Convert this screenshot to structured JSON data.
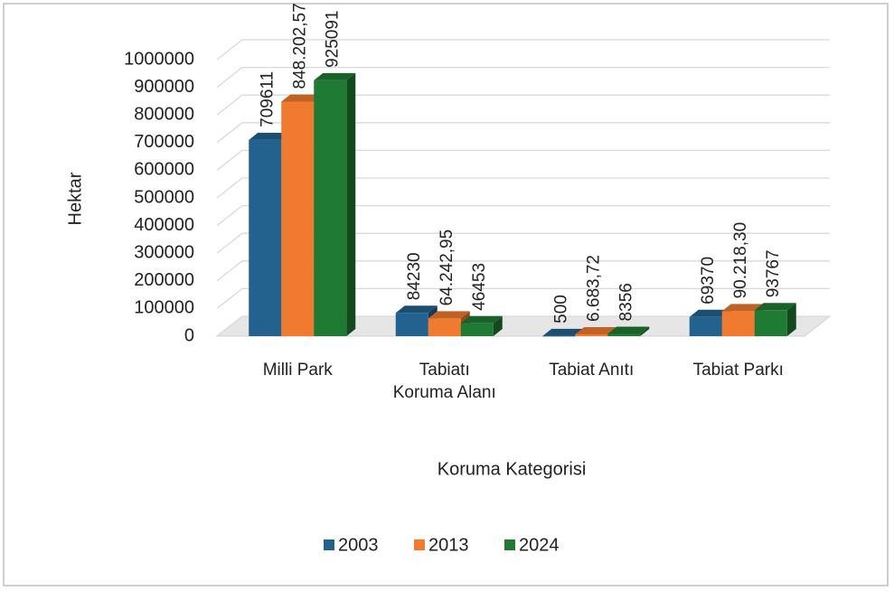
{
  "chart_data": {
    "type": "bar3d",
    "categories": [
      "Milli Park",
      "Tabiatı Koruma Alanı",
      "Tabiat Anıtı",
      "Tabiat Parkı"
    ],
    "series": [
      {
        "name": "2003",
        "color": "#23628f",
        "values": [
          709611,
          84230,
          500,
          69370
        ]
      },
      {
        "name": "2013",
        "color": "#f07a30",
        "values": [
          848202.57,
          64242.95,
          6683.72,
          90218.3
        ],
        "value_labels": [
          "848.202,57",
          "64.242,95",
          "6.683,72",
          "90.218,30"
        ]
      },
      {
        "name": "2024",
        "color": "#1f7a34",
        "values": [
          925091,
          46453,
          8356,
          93767
        ]
      }
    ],
    "y_label": "Hektar",
    "x_label": "Koruma Kategorisi",
    "ylim": [
      0,
      1000000
    ],
    "yticks": [
      0,
      100000,
      200000,
      300000,
      400000,
      500000,
      600000,
      700000,
      800000,
      900000,
      1000000
    ],
    "grid": true,
    "legend": "bottom"
  }
}
